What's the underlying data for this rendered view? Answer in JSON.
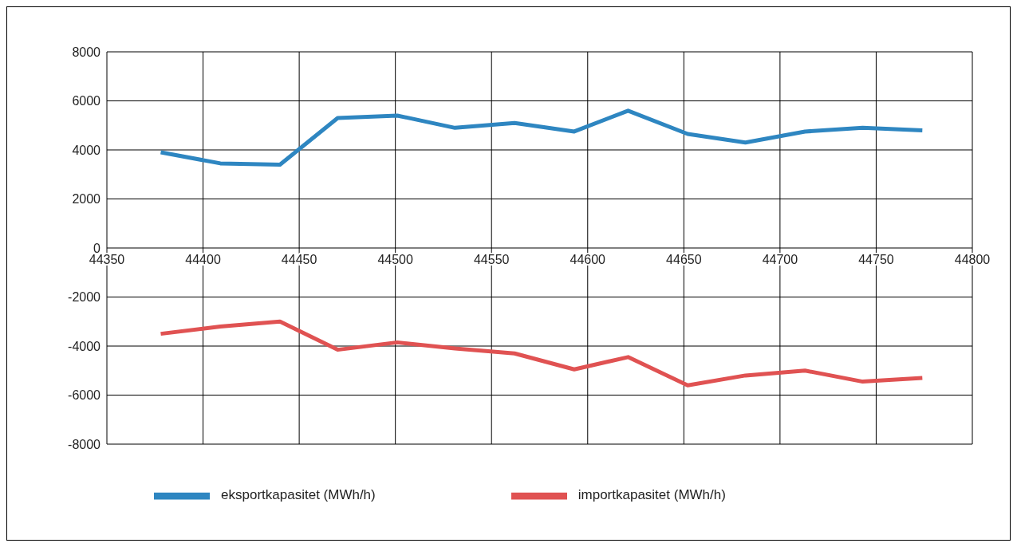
{
  "chart_data": {
    "type": "line",
    "x": [
      44378,
      44409,
      44440,
      44470,
      44501,
      44531,
      44562,
      44593,
      44621,
      44652,
      44682,
      44713,
      44743,
      44774
    ],
    "series": [
      {
        "name": "eksportkapasitet (MWh/h)",
        "color": "#2e86c1",
        "values": [
          3900,
          3450,
          3400,
          5300,
          5400,
          4900,
          5100,
          4750,
          5600,
          4650,
          4300,
          4750,
          4900,
          4800
        ]
      },
      {
        "name": "importkapasitet (MWh/h)",
        "color": "#e05252",
        "values": [
          -3500,
          -3200,
          -3000,
          -4150,
          -3850,
          -4100,
          -4300,
          -4950,
          -4450,
          -5600,
          -5200,
          -5000,
          -5450,
          -5300
        ]
      }
    ],
    "xlim": [
      44350,
      44800
    ],
    "xticks": [
      44350,
      44400,
      44450,
      44500,
      44550,
      44600,
      44650,
      44700,
      44750,
      44800
    ],
    "ylim": [
      -8000,
      8000
    ],
    "yticks": [
      -8000,
      -6000,
      -4000,
      -2000,
      0,
      2000,
      4000,
      6000,
      8000
    ],
    "grid": true,
    "legend": "bottom",
    "marker": "none",
    "line_style": "solid"
  }
}
